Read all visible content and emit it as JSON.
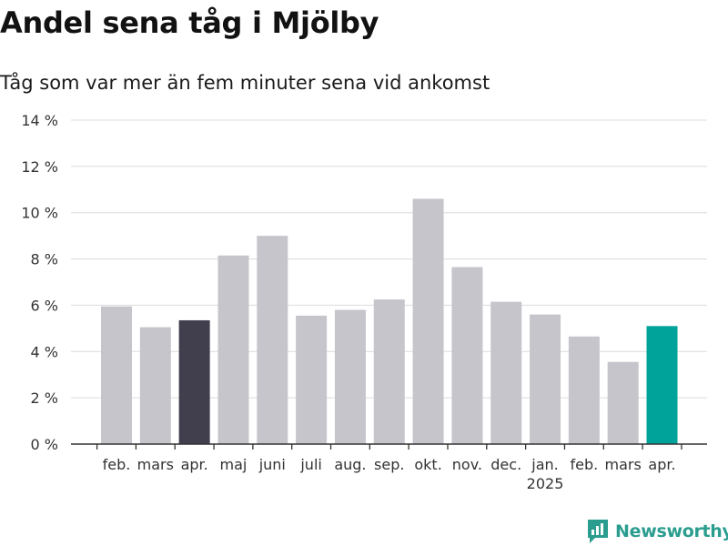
{
  "title": "Andel sena tåg i Mjölby",
  "subtitle": "Tåg som var mer än fem minuter sena vid ankomst",
  "brand": {
    "name": "Newsworthy",
    "icon": "newsworthy-logo-icon"
  },
  "colors": {
    "default_bar": "#c6c5cc",
    "highlight_dark": "#413f4e",
    "highlight_latest": "#00a39a",
    "grid": "#dcdcdc",
    "axis": "#333333",
    "brand": "#2a9d8f"
  },
  "chart_data": {
    "type": "bar",
    "categories": [
      "feb.",
      "mars",
      "apr.",
      "maj",
      "juni",
      "juli",
      "aug.",
      "sep.",
      "okt.",
      "nov.",
      "dec.",
      "jan.",
      "feb.",
      "mars",
      "apr."
    ],
    "year_labels": [
      {
        "index": 11,
        "label": "2025"
      }
    ],
    "values": [
      5.95,
      5.05,
      5.35,
      8.15,
      9.0,
      5.55,
      5.8,
      6.25,
      10.6,
      7.65,
      6.15,
      5.6,
      4.65,
      3.55,
      5.1
    ],
    "highlight": {
      "2": "highlight_dark",
      "14": "highlight_latest"
    },
    "ylim": [
      0,
      14
    ],
    "yticks": [
      0,
      2,
      4,
      6,
      8,
      10,
      12,
      14
    ],
    "ytick_suffix": " %",
    "grid": true,
    "legend": "none",
    "xlabel": "",
    "ylabel": ""
  }
}
